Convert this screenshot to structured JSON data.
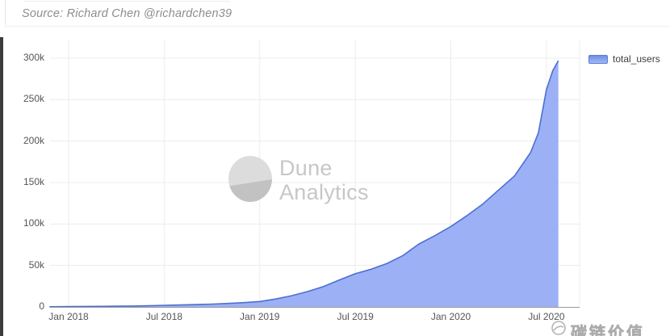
{
  "header": {
    "source_line": "Source: Richard Chen @richardchen39"
  },
  "legend": {
    "label": "total_users"
  },
  "watermarks": {
    "dune_line1": "Dune",
    "dune_line2": "Analytics",
    "footer_text": "碳链价值"
  },
  "colors": {
    "line": "#4d6fd3",
    "area_fill": "#9cb0f6",
    "grid": "#ececec",
    "axis": "#9a9a9a",
    "tick_text": "#555555",
    "legend_swatch_top": "#6c8fe8",
    "legend_swatch_bottom": "#a3b7f2",
    "left_bar": "#3c3c3c",
    "watermark_gray": "#c7c7c7"
  },
  "chart_data": {
    "type": "area",
    "title": "",
    "xlabel": "",
    "ylabel": "",
    "x_unit": "months since Jan 2018",
    "x_tick_labels": [
      "Jan 2018",
      "Jul 2018",
      "Jan 2019",
      "Jul 2019",
      "Jan 2020",
      "Jul 2020"
    ],
    "x_tick_positions": [
      0,
      6,
      12,
      18,
      24,
      30
    ],
    "y_tick_labels": [
      "0",
      "50k",
      "100k",
      "150k",
      "200k",
      "250k",
      "300k"
    ],
    "y_tick_values": [
      0,
      50000,
      100000,
      150000,
      200000,
      250000,
      300000
    ],
    "xlim": [
      -1.2,
      32.1
    ],
    "ylim": [
      0,
      321000
    ],
    "grid": true,
    "legend_position": "top-right",
    "series": [
      {
        "name": "total_users",
        "x": [
          -1.2,
          0,
          1,
          2,
          3,
          4,
          5,
          6,
          7,
          8,
          9,
          10,
          11,
          12,
          13,
          14,
          15,
          16,
          17,
          18,
          19,
          20,
          21,
          22,
          23,
          24,
          25,
          26,
          27,
          28,
          29,
          29.5,
          30,
          30.4,
          30.75
        ],
        "values": [
          150,
          400,
          550,
          700,
          900,
          1100,
          1400,
          1900,
          2300,
          2800,
          3400,
          4200,
          5200,
          6500,
          9500,
          13500,
          18500,
          24500,
          32500,
          40000,
          45500,
          52500,
          62000,
          76000,
          86000,
          97000,
          110000,
          124000,
          141000,
          158000,
          186000,
          210000,
          262000,
          285000,
          297000
        ]
      }
    ]
  }
}
